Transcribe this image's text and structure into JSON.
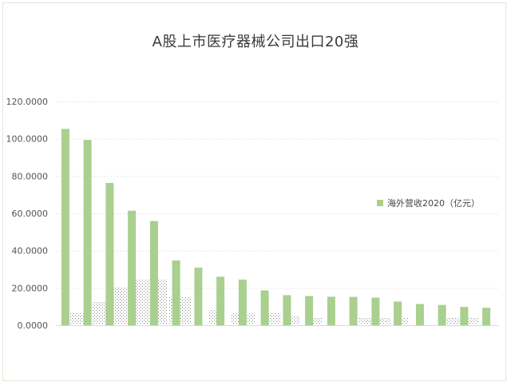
{
  "chart_data": {
    "type": "bar",
    "title": "A股上市医疗器械公司出口20强",
    "xlabel": "",
    "ylabel": "",
    "ylim": [
      0,
      120
    ],
    "y_ticks": [
      "120.0000",
      "100.0000",
      "80.0000",
      "60.0000",
      "40.0000",
      "20.0000",
      "0.0000"
    ],
    "y_tick_values": [
      120,
      100,
      80,
      60,
      40,
      20,
      0
    ],
    "grid": true,
    "legend_position": "right",
    "color": "#a9d08e",
    "series": [
      {
        "name": "海外营收2020（亿元）",
        "values": [
          105.3,
          99.4,
          76.3,
          61.4,
          55.9,
          34.8,
          30.9,
          26.0,
          24.5,
          18.7,
          16.1,
          15.7,
          15.3,
          15.2,
          14.8,
          12.7,
          11.4,
          10.9,
          9.8,
          9.4
        ]
      }
    ]
  }
}
